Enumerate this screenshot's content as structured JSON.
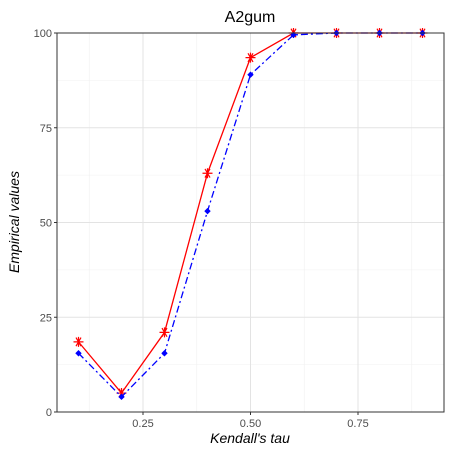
{
  "chart_data": {
    "type": "line",
    "title": "A2gum",
    "xlabel": "Kendall's tau",
    "ylabel": "Empirical values",
    "xlim": [
      0.05,
      0.95
    ],
    "ylim": [
      0,
      100
    ],
    "x_ticks": [
      0.25,
      0.5,
      0.75
    ],
    "x_tick_labels": [
      "0.25",
      "0.50",
      "0.75"
    ],
    "y_ticks": [
      0,
      25,
      50,
      75,
      100
    ],
    "y_tick_labels": [
      "0",
      "25",
      "50",
      "75",
      "100"
    ],
    "grid": true,
    "x": [
      0.1,
      0.2,
      0.3,
      0.4,
      0.5,
      0.6,
      0.7,
      0.8,
      0.9
    ],
    "series": [
      {
        "values": [
          18.5,
          5.0,
          21.0,
          63.0,
          93.5,
          100.0,
          100.0,
          100.0,
          100.0
        ],
        "color": "#ff0000",
        "line_style": "solid",
        "marker": "asterisk"
      },
      {
        "values": [
          15.5,
          4.0,
          15.5,
          53.0,
          89.0,
          99.5,
          100.0,
          100.0,
          100.0
        ],
        "color": "#0000ff",
        "line_style": "dashdot",
        "marker": "diamond"
      }
    ]
  }
}
